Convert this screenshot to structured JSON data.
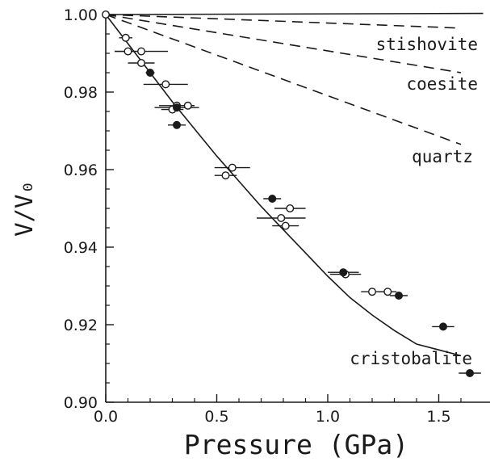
{
  "chart_data": {
    "type": "scatter",
    "title": "",
    "xlabel": "Pressure (GPa)",
    "ylabel": "V/V₀",
    "xlim": [
      0.0,
      1.7
    ],
    "ylim": [
      0.9,
      1.0
    ],
    "xticks": [
      0.0,
      0.5,
      1.0,
      1.5
    ],
    "xtick_labels": [
      "0.0",
      "0.5",
      "1.0",
      "1.5"
    ],
    "yticks": [
      0.9,
      0.92,
      0.94,
      0.96,
      0.98,
      1.0
    ],
    "ytick_labels": [
      "0.90",
      "0.92",
      "0.94",
      "0.96",
      "0.98",
      "1.00"
    ],
    "grid": false,
    "legend": "none",
    "reference_lines": [
      {
        "label": "stishovite",
        "style": "dashed",
        "points": [
          [
            0.0,
            1.0
          ],
          [
            1.6,
            0.9965
          ]
        ]
      },
      {
        "label": "coesite",
        "style": "dashed",
        "points": [
          [
            0.0,
            1.0
          ],
          [
            1.6,
            0.985
          ]
        ]
      },
      {
        "label": "quartz",
        "style": "dashed",
        "points": [
          [
            0.0,
            1.0
          ],
          [
            1.6,
            0.9665
          ]
        ]
      },
      {
        "label": "",
        "style": "solid",
        "points": [
          [
            0.0,
            1.0
          ],
          [
            1.7,
            1.0003
          ]
        ]
      }
    ],
    "fit_curve": {
      "label": "cristobalite",
      "style": "solid",
      "points": [
        [
          0.0,
          1.0
        ],
        [
          0.1,
          0.9925
        ],
        [
          0.2,
          0.985
        ],
        [
          0.3,
          0.9775
        ],
        [
          0.4,
          0.9705
        ],
        [
          0.5,
          0.9635
        ],
        [
          0.6,
          0.957
        ],
        [
          0.7,
          0.9505
        ],
        [
          0.8,
          0.9445
        ],
        [
          0.9,
          0.9385
        ],
        [
          1.0,
          0.9325
        ],
        [
          1.1,
          0.927
        ],
        [
          1.2,
          0.9225
        ],
        [
          1.3,
          0.9185
        ],
        [
          1.4,
          0.915
        ],
        [
          1.5,
          0.9135
        ],
        [
          1.6,
          0.912
        ]
      ]
    },
    "series": [
      {
        "marker": "open-circle",
        "points": [
          {
            "x": 0.0,
            "y": 1.0,
            "xerr": 0.0
          },
          {
            "x": 0.09,
            "y": 0.994,
            "xerr": 0.03
          },
          {
            "x": 0.1,
            "y": 0.9905,
            "xerr": 0.06
          },
          {
            "x": 0.16,
            "y": 0.9905,
            "xerr": 0.12
          },
          {
            "x": 0.16,
            "y": 0.9875,
            "xerr": 0.06
          },
          {
            "x": 0.27,
            "y": 0.982,
            "xerr": 0.1
          },
          {
            "x": 0.3,
            "y": 0.9755,
            "xerr": 0.05
          },
          {
            "x": 0.32,
            "y": 0.9765,
            "xerr": 0.08
          },
          {
            "x": 0.37,
            "y": 0.9765,
            "xerr": 0.03
          },
          {
            "x": 0.54,
            "y": 0.9585,
            "xerr": 0.05
          },
          {
            "x": 0.57,
            "y": 0.9605,
            "xerr": 0.08
          },
          {
            "x": 0.79,
            "y": 0.9475,
            "xerr": 0.11
          },
          {
            "x": 0.81,
            "y": 0.9455,
            "xerr": 0.06
          },
          {
            "x": 0.83,
            "y": 0.95,
            "xerr": 0.07
          },
          {
            "x": 1.08,
            "y": 0.933,
            "xerr": 0.07
          },
          {
            "x": 1.2,
            "y": 0.9285,
            "xerr": 0.05
          },
          {
            "x": 1.27,
            "y": 0.9285,
            "xerr": 0.04
          }
        ]
      },
      {
        "marker": "filled-circle",
        "points": [
          {
            "x": 0.2,
            "y": 0.985,
            "xerr": 0.02
          },
          {
            "x": 0.32,
            "y": 0.976,
            "xerr": 0.1
          },
          {
            "x": 0.32,
            "y": 0.9715,
            "xerr": 0.04
          },
          {
            "x": 0.75,
            "y": 0.9525,
            "xerr": 0.04
          },
          {
            "x": 1.07,
            "y": 0.9335,
            "xerr": 0.07
          },
          {
            "x": 1.32,
            "y": 0.9275,
            "xerr": 0.04
          },
          {
            "x": 1.52,
            "y": 0.9195,
            "xerr": 0.05
          },
          {
            "x": 1.64,
            "y": 0.9075,
            "xerr": 0.05
          }
        ]
      }
    ]
  },
  "colors": {
    "ink": "#1a1a1a",
    "background": "#ffffff"
  }
}
